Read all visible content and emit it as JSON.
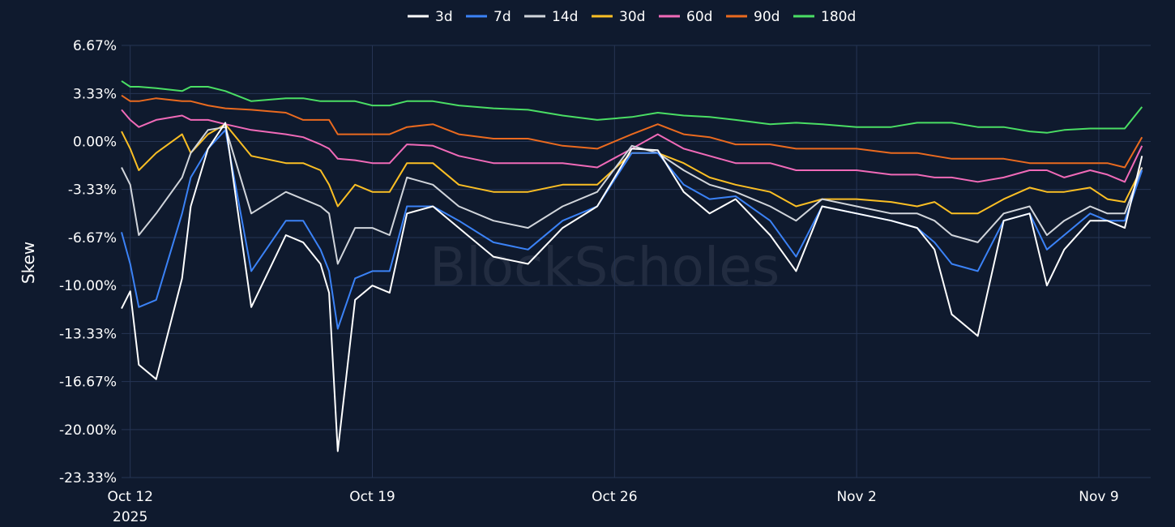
{
  "chart_data": {
    "type": "line",
    "ylabel": "Skew",
    "watermark": "BlockScholes",
    "legend_position": "top-center",
    "grid": true,
    "ylim": [
      -23.33,
      6.67
    ],
    "yticks": [
      {
        "value": 6.67,
        "label": "6.67%"
      },
      {
        "value": 3.33,
        "label": "3.33%"
      },
      {
        "value": 0.0,
        "label": "0.00%"
      },
      {
        "value": -3.33,
        "label": "-3.33%"
      },
      {
        "value": -6.67,
        "label": "-6.67%"
      },
      {
        "value": -10.0,
        "label": "-10.00%"
      },
      {
        "value": -13.33,
        "label": "-13.33%"
      },
      {
        "value": -16.67,
        "label": "-16.67%"
      },
      {
        "value": -20.0,
        "label": "-20.00%"
      },
      {
        "value": -23.33,
        "label": "-23.33%"
      }
    ],
    "xlim": [
      "2025-10-11 18:00",
      "2025-11-10 12:00"
    ],
    "xticks": [
      {
        "value": "2025-10-12",
        "label": "Oct 12",
        "sublabel": "2025"
      },
      {
        "value": "2025-10-19",
        "label": "Oct 19",
        "sublabel": ""
      },
      {
        "value": "2025-10-26",
        "label": "Oct 26",
        "sublabel": ""
      },
      {
        "value": "2025-11-02",
        "label": "Nov 2",
        "sublabel": ""
      },
      {
        "value": "2025-11-09",
        "label": "Nov 9",
        "sublabel": ""
      }
    ],
    "x": [
      "2025-10-11 18:00",
      "2025-10-12 00:00",
      "2025-10-12 06:00",
      "2025-10-12 18:00",
      "2025-10-13 12:00",
      "2025-10-13 18:00",
      "2025-10-14 06:00",
      "2025-10-14 18:00",
      "2025-10-15 12:00",
      "2025-10-16 12:00",
      "2025-10-17 00:00",
      "2025-10-17 12:00",
      "2025-10-17 18:00",
      "2025-10-18 00:00",
      "2025-10-18 12:00",
      "2025-10-19 00:00",
      "2025-10-19 12:00",
      "2025-10-20 00:00",
      "2025-10-20 18:00",
      "2025-10-21 12:00",
      "2025-10-22 12:00",
      "2025-10-23 12:00",
      "2025-10-24 12:00",
      "2025-10-25 12:00",
      "2025-10-26 12:00",
      "2025-10-27 06:00",
      "2025-10-28 00:00",
      "2025-10-28 18:00",
      "2025-10-29 12:00",
      "2025-10-30 12:00",
      "2025-10-31 06:00",
      "2025-11-01 00:00",
      "2025-11-02 00:00",
      "2025-11-03 00:00",
      "2025-11-03 18:00",
      "2025-11-04 06:00",
      "2025-11-04 18:00",
      "2025-11-05 12:00",
      "2025-11-06 06:00",
      "2025-11-07 00:00",
      "2025-11-07 12:00",
      "2025-11-08 00:00",
      "2025-11-08 18:00",
      "2025-11-09 06:00",
      "2025-11-09 18:00",
      "2025-11-10 06:00"
    ],
    "series": [
      {
        "name": "3d",
        "color": "#ffffff",
        "values": [
          -11.6,
          -10.4,
          -15.5,
          -16.5,
          -9.5,
          -4.5,
          -0.5,
          1.3,
          -11.5,
          -6.5,
          -7.0,
          -8.5,
          -10.5,
          -21.5,
          -11.0,
          -10.0,
          -10.5,
          -5.0,
          -4.5,
          -6.0,
          -8.0,
          -8.5,
          -6.0,
          -4.5,
          -0.5,
          -0.6,
          -3.5,
          -5.0,
          -4.0,
          -6.5,
          -9.0,
          -4.5,
          -5.0,
          -5.5,
          -6.0,
          -7.5,
          -12.0,
          -13.5,
          -5.5,
          -5.0,
          -10.0,
          -7.5,
          -5.5,
          -5.5,
          -6.0,
          -1.0
        ]
      },
      {
        "name": "7d",
        "color": "#3b82f6",
        "values": [
          -6.3,
          -8.5,
          -11.5,
          -11.0,
          -5.0,
          -2.5,
          -0.5,
          0.8,
          -9.0,
          -5.5,
          -5.5,
          -7.5,
          -9.0,
          -13.0,
          -9.5,
          -9.0,
          -9.0,
          -4.5,
          -4.5,
          -5.5,
          -7.0,
          -7.5,
          -5.5,
          -4.5,
          -0.8,
          -0.8,
          -3.0,
          -4.0,
          -3.8,
          -5.5,
          -8.0,
          -4.5,
          -5.0,
          -5.5,
          -6.0,
          -7.0,
          -8.5,
          -9.0,
          -5.5,
          -5.0,
          -7.5,
          -6.5,
          -5.0,
          -5.5,
          -5.5,
          -2.0
        ]
      },
      {
        "name": "14d",
        "color": "#d1d5db",
        "values": [
          -1.8,
          -3.0,
          -6.5,
          -5.0,
          -2.5,
          -0.8,
          0.8,
          1.0,
          -5.0,
          -3.5,
          -4.0,
          -4.5,
          -5.0,
          -8.5,
          -6.0,
          -6.0,
          -6.5,
          -2.5,
          -3.0,
          -4.5,
          -5.5,
          -6.0,
          -4.5,
          -3.5,
          -0.3,
          -0.8,
          -2.0,
          -3.0,
          -3.5,
          -4.5,
          -5.5,
          -4.0,
          -4.5,
          -5.0,
          -5.0,
          -5.5,
          -6.5,
          -7.0,
          -5.0,
          -4.5,
          -6.5,
          -5.5,
          -4.5,
          -5.0,
          -5.0,
          -1.8
        ]
      },
      {
        "name": "30d",
        "color": "#fbbf24",
        "values": [
          0.7,
          -0.5,
          -2.0,
          -0.8,
          0.5,
          -0.8,
          0.5,
          1.2,
          -1.0,
          -1.5,
          -1.5,
          -2.0,
          -3.0,
          -4.5,
          -3.0,
          -3.5,
          -3.5,
          -1.5,
          -1.5,
          -3.0,
          -3.5,
          -3.5,
          -3.0,
          -3.0,
          -0.8,
          -0.8,
          -1.5,
          -2.5,
          -3.0,
          -3.5,
          -4.5,
          -4.0,
          -4.0,
          -4.2,
          -4.5,
          -4.2,
          -5.0,
          -5.0,
          -4.0,
          -3.2,
          -3.5,
          -3.5,
          -3.2,
          -4.0,
          -4.2,
          -1.8
        ]
      },
      {
        "name": "60d",
        "color": "#f06ab8",
        "values": [
          2.2,
          1.5,
          1.0,
          1.5,
          1.8,
          1.5,
          1.5,
          1.2,
          0.8,
          0.5,
          0.3,
          -0.2,
          -0.5,
          -1.2,
          -1.3,
          -1.5,
          -1.5,
          -0.2,
          -0.3,
          -1.0,
          -1.5,
          -1.5,
          -1.5,
          -1.8,
          -0.5,
          0.5,
          -0.5,
          -1.0,
          -1.5,
          -1.5,
          -2.0,
          -2.0,
          -2.0,
          -2.3,
          -2.3,
          -2.5,
          -2.5,
          -2.8,
          -2.5,
          -2.0,
          -2.0,
          -2.5,
          -2.0,
          -2.3,
          -2.8,
          -0.3
        ]
      },
      {
        "name": "90d",
        "color": "#ea6a1f",
        "values": [
          3.2,
          2.8,
          2.8,
          3.0,
          2.8,
          2.8,
          2.5,
          2.3,
          2.2,
          2.0,
          1.5,
          1.5,
          1.5,
          0.5,
          0.5,
          0.5,
          0.5,
          1.0,
          1.2,
          0.5,
          0.2,
          0.2,
          -0.3,
          -0.5,
          0.5,
          1.2,
          0.5,
          0.3,
          -0.2,
          -0.2,
          -0.5,
          -0.5,
          -0.5,
          -0.8,
          -0.8,
          -1.0,
          -1.2,
          -1.2,
          -1.2,
          -1.5,
          -1.5,
          -1.5,
          -1.5,
          -1.5,
          -1.8,
          0.3
        ]
      },
      {
        "name": "180d",
        "color": "#4ade64",
        "values": [
          4.2,
          3.8,
          3.8,
          3.7,
          3.5,
          3.8,
          3.8,
          3.5,
          2.8,
          3.0,
          3.0,
          2.8,
          2.8,
          2.8,
          2.8,
          2.5,
          2.5,
          2.8,
          2.8,
          2.5,
          2.3,
          2.2,
          1.8,
          1.5,
          1.7,
          2.0,
          1.8,
          1.7,
          1.5,
          1.2,
          1.3,
          1.2,
          1.0,
          1.0,
          1.3,
          1.3,
          1.3,
          1.0,
          1.0,
          0.7,
          0.6,
          0.8,
          0.9,
          0.9,
          0.9,
          2.4
        ]
      }
    ]
  }
}
